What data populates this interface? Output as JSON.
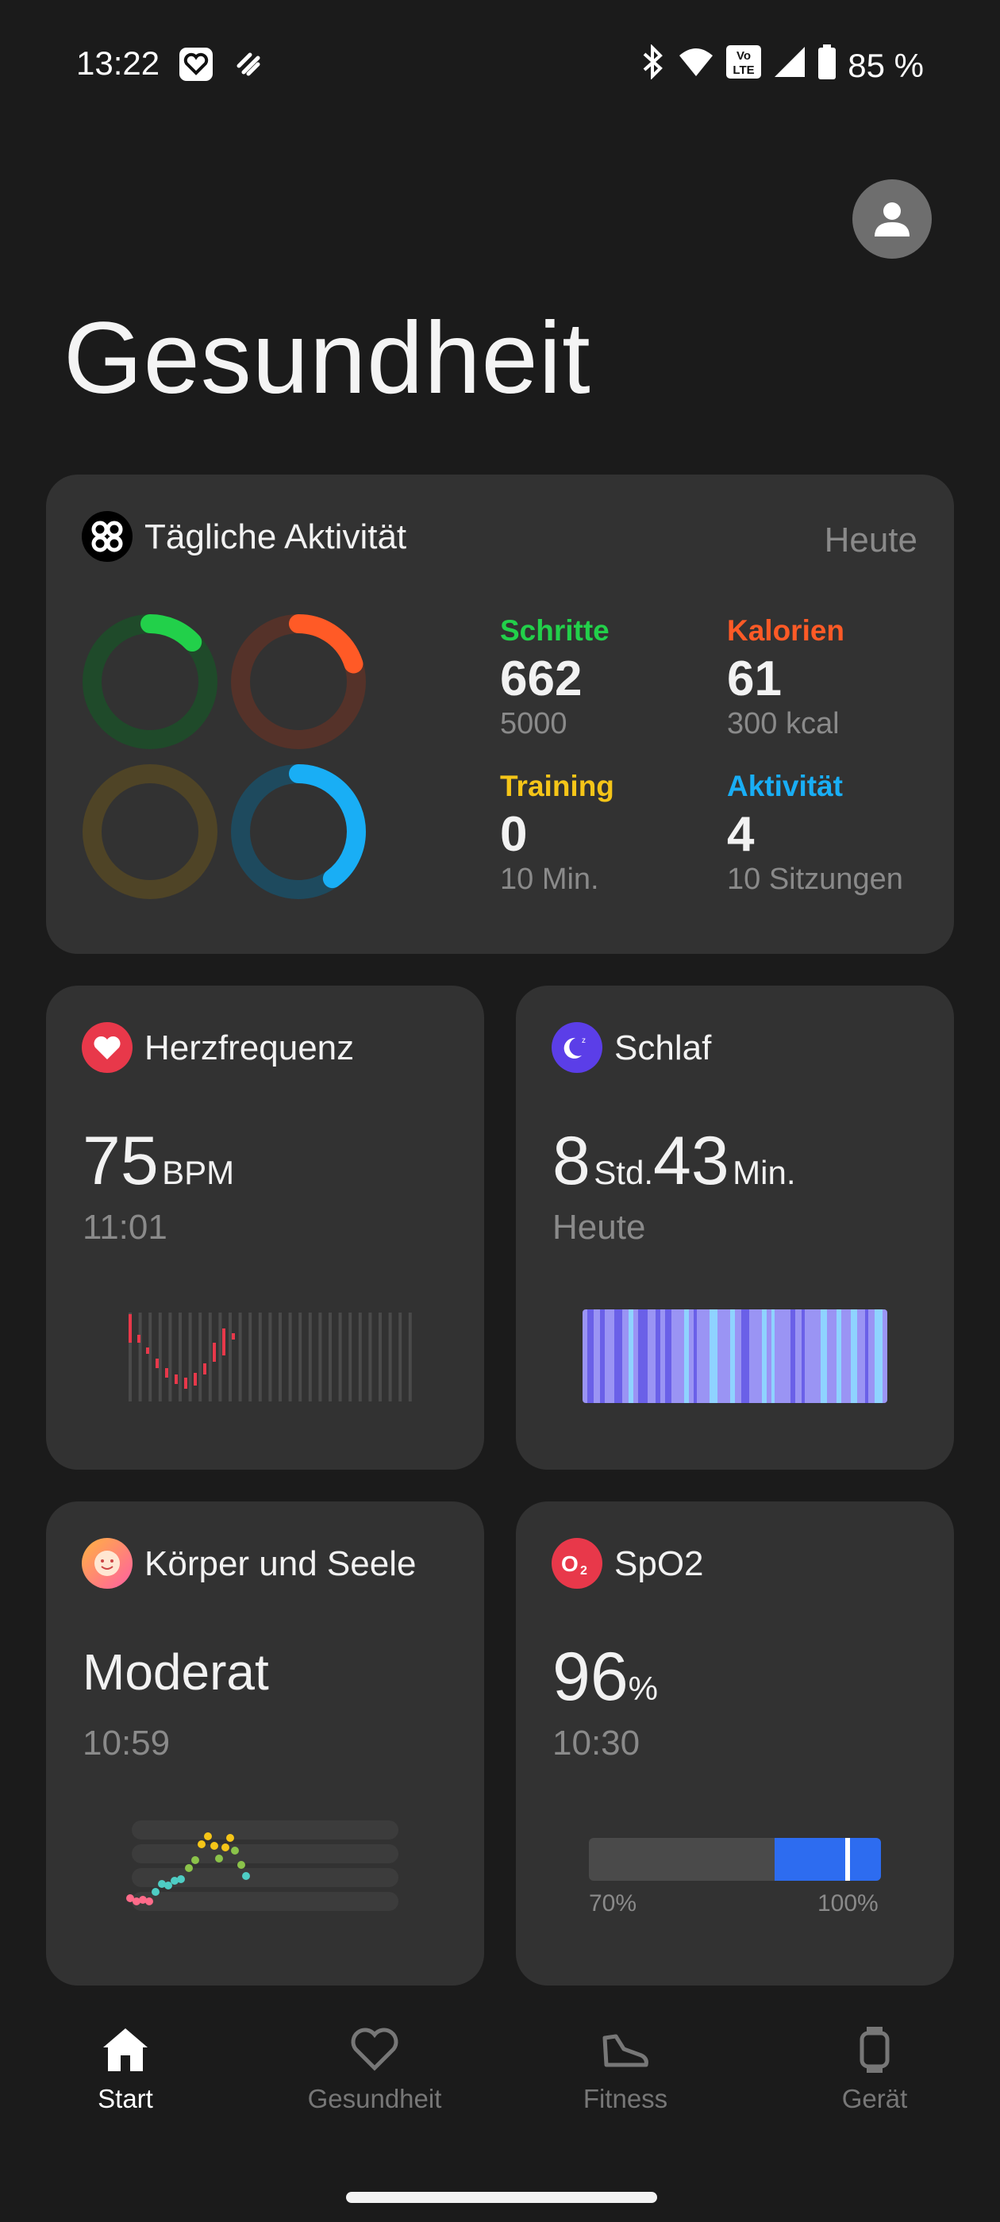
{
  "status_bar": {
    "time": "13:22",
    "battery": "85 %"
  },
  "header": {
    "title": "Gesundheit"
  },
  "activity_card": {
    "title": "Tägliche Aktivität",
    "period": "Heute",
    "stats": {
      "steps": {
        "label": "Schritte",
        "value": "662",
        "goal": "5000",
        "color": "#22d04a"
      },
      "calories": {
        "label": "Kalorien",
        "value": "61",
        "goal": "300 kcal",
        "color": "#ff5a26"
      },
      "training": {
        "label": "Training",
        "value": "0",
        "goal": "10 Min.",
        "color": "#f5c518"
      },
      "activity": {
        "label": "Aktivität",
        "value": "4",
        "goal": "10 Sitzungen",
        "color": "#19aef5"
      }
    },
    "rings": {
      "steps_fraction": 0.13,
      "calories_fraction": 0.2,
      "training_fraction": 0,
      "activity_fraction": 0.4
    }
  },
  "heart_card": {
    "title": "Herzfrequenz",
    "value": "75",
    "unit": "BPM",
    "time": "11:01",
    "icon": "heart-icon"
  },
  "sleep_card": {
    "title": "Schlaf",
    "hours": "8",
    "hours_unit": "Std.",
    "minutes": "43",
    "minutes_unit": "Min.",
    "day": "Heute",
    "icon": "moon-icon"
  },
  "mind_card": {
    "title": "Körper und Seele",
    "value": "Moderat",
    "time": "10:59",
    "icon": "smiley-icon"
  },
  "spo2_card": {
    "title": "SpO2",
    "value": "96",
    "unit": "%",
    "time": "10:30",
    "scale_min": "70%",
    "scale_max": "100%",
    "icon": "o2-icon",
    "level_fraction": 0.87
  },
  "bottom_nav": {
    "items": [
      {
        "label": "Start",
        "icon": "home-icon",
        "active": true
      },
      {
        "label": "Gesundheit",
        "icon": "heart-outline-icon",
        "active": false
      },
      {
        "label": "Fitness",
        "icon": "shoe-icon",
        "active": false
      },
      {
        "label": "Gerät",
        "icon": "watch-icon",
        "active": false
      }
    ]
  }
}
